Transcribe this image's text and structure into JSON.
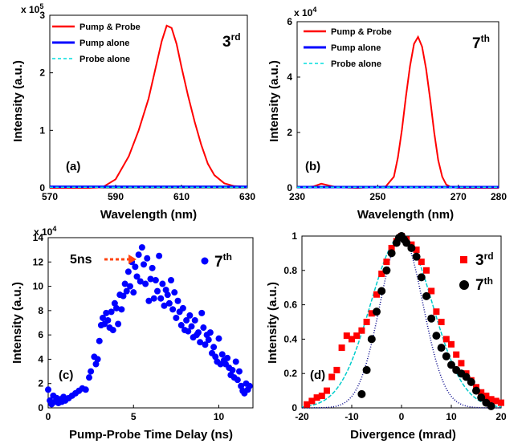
{
  "chart_data": [
    {
      "id": "a",
      "type": "line",
      "panel_label": "(a)",
      "order_label": "3",
      "order_sup": "rd",
      "multiplier": "x 10",
      "multiplier_exp": "5",
      "xlabel": "Wavelength (nm)",
      "ylabel": "Intensity (a.u.)",
      "xlim": [
        570,
        630
      ],
      "ylim": [
        0,
        3
      ],
      "xticks": [
        570,
        590,
        610,
        630
      ],
      "yticks": [
        0,
        1,
        2,
        3
      ],
      "legend": "top-left",
      "series": [
        {
          "name": "Pump & Probe",
          "color": "#ff0000",
          "style": "solid",
          "x": [
            570,
            582,
            586,
            590,
            594,
            597,
            600,
            602,
            604,
            605.5,
            607,
            608.5,
            610,
            612,
            614,
            616,
            618,
            620,
            623,
            626,
            630
          ],
          "y": [
            0,
            0,
            0.01,
            0.15,
            0.55,
            1.0,
            1.55,
            2.05,
            2.55,
            2.82,
            2.78,
            2.5,
            2.1,
            1.6,
            1.15,
            0.75,
            0.42,
            0.22,
            0.08,
            0.03,
            0.02
          ]
        },
        {
          "name": "Pump alone",
          "color": "#0000ff",
          "style": "solid",
          "x": [
            570,
            630
          ],
          "y": [
            0.02,
            0.02
          ]
        },
        {
          "name": "Probe alone",
          "color": "#00dddd",
          "style": "dashed",
          "x": [
            570,
            630
          ],
          "y": [
            0.01,
            0.01
          ]
        }
      ]
    },
    {
      "id": "b",
      "type": "line",
      "panel_label": "(b)",
      "order_label": "7",
      "order_sup": "th",
      "multiplier": "x 10",
      "multiplier_exp": "4",
      "xlabel": "Wavelength (nm)",
      "ylabel": "Intensity (a.u.)",
      "xlim": [
        230,
        280
      ],
      "ylim": [
        0,
        6
      ],
      "xticks": [
        230,
        250,
        270,
        280
      ],
      "yticks": [
        0,
        2,
        4,
        6
      ],
      "legend": "top-left",
      "series": [
        {
          "name": "Pump & Probe",
          "color": "#ff0000",
          "style": "solid",
          "x": [
            230,
            234,
            236,
            238,
            240,
            245,
            252,
            254,
            255,
            256,
            257,
            258,
            259,
            260,
            261,
            262,
            263,
            264,
            265,
            266,
            267,
            268,
            270,
            280
          ],
          "y": [
            0.02,
            0.05,
            0.15,
            0.08,
            0.02,
            0,
            0.05,
            0.4,
            1.1,
            2.1,
            3.3,
            4.4,
            5.2,
            5.45,
            5.1,
            4.3,
            3.2,
            2.0,
            1.0,
            0.4,
            0.12,
            0.04,
            0,
            0
          ]
        },
        {
          "name": "Pump alone",
          "color": "#0000ff",
          "style": "solid",
          "x": [
            230,
            280
          ],
          "y": [
            0.03,
            0.03
          ]
        },
        {
          "name": "Probe alone",
          "color": "#00dddd",
          "style": "dashed",
          "x": [
            230,
            280
          ],
          "y": [
            0.02,
            0.02
          ]
        }
      ]
    },
    {
      "id": "c",
      "type": "scatter",
      "panel_label": "(c)",
      "order_label": "7",
      "order_sup": "th",
      "annotation": "5ns",
      "annotation_color": "#ff4411",
      "multiplier": "x 10",
      "multiplier_exp": "4",
      "xlabel": "Pump-Probe Time Delay (ns)",
      "ylabel": "Intensity (a.u.)",
      "xlim": [
        0,
        12
      ],
      "ylim": [
        0,
        14
      ],
      "xticks": [
        0,
        5,
        10
      ],
      "yticks": [
        0,
        2,
        4,
        6,
        8,
        10,
        12,
        14
      ],
      "legend": "top-right",
      "series": [
        {
          "name": "7th",
          "color": "#0000ff",
          "marker": "circle",
          "x": [
            0.0,
            0.1,
            0.2,
            0.3,
            0.4,
            0.5,
            0.6,
            0.7,
            0.8,
            0.9,
            1.0,
            1.2,
            1.4,
            1.6,
            1.8,
            2.0,
            2.2,
            2.4,
            2.5,
            2.7,
            2.8,
            2.9,
            3.0,
            3.1,
            3.2,
            3.3,
            3.4,
            3.5,
            3.6,
            3.7,
            3.8,
            3.9,
            4.0,
            4.1,
            4.2,
            4.3,
            4.4,
            4.5,
            4.6,
            4.7,
            4.8,
            4.9,
            5.0,
            5.1,
            5.2,
            5.3,
            5.4,
            5.5,
            5.6,
            5.7,
            5.8,
            5.9,
            6.0,
            6.1,
            6.2,
            6.3,
            6.4,
            6.5,
            6.6,
            6.7,
            6.8,
            6.9,
            7.0,
            7.1,
            7.2,
            7.3,
            7.4,
            7.5,
            7.6,
            7.7,
            7.8,
            7.9,
            8.0,
            8.1,
            8.2,
            8.3,
            8.4,
            8.5,
            8.6,
            8.7,
            8.8,
            8.9,
            9.0,
            9.1,
            9.2,
            9.3,
            9.4,
            9.5,
            9.6,
            9.7,
            9.8,
            9.9,
            10.0,
            10.1,
            10.2,
            10.3,
            10.4,
            10.5,
            10.6,
            10.7,
            10.8,
            10.9,
            11.0,
            11.1,
            11.2,
            11.3,
            11.4,
            11.5,
            11.6,
            11.7,
            11.8
          ],
          "y": [
            1.5,
            0.6,
            0.3,
            1.0,
            0.5,
            0.8,
            0.4,
            0.7,
            0.5,
            0.9,
            0.6,
            0.8,
            1.0,
            1.2,
            1.4,
            1.6,
            1.5,
            2.5,
            3.0,
            4.2,
            3.6,
            4.0,
            5.5,
            6.8,
            7.4,
            6.9,
            7.8,
            7.2,
            6.6,
            7.9,
            6.4,
            8.6,
            8.2,
            6.9,
            9.3,
            8.1,
            9.2,
            10.2,
            9.6,
            11.2,
            10.0,
            12.0,
            9.5,
            11.6,
            10.8,
            12.6,
            10.4,
            13.2,
            11.8,
            10.2,
            12.3,
            8.8,
            10.6,
            11.5,
            9.0,
            10.5,
            9.6,
            12.5,
            9.0,
            10.2,
            8.4,
            9.7,
            9.3,
            8.6,
            10.5,
            8.1,
            9.5,
            7.4,
            8.8,
            7.9,
            6.8,
            8.2,
            6.4,
            7.2,
            6.3,
            7.6,
            6.7,
            5.8,
            7.2,
            6.0,
            6.2,
            5.4,
            7.8,
            6.6,
            5.2,
            6.0,
            5.6,
            6.2,
            4.5,
            5.0,
            4.2,
            3.8,
            5.7,
            3.6,
            4.4,
            3.9,
            3.6,
            4.1,
            3.3,
            2.7,
            3.1,
            2.5,
            3.8,
            2.3,
            3.0,
            1.8,
            1.4,
            1.2,
            2.0,
            1.5,
            1.8
          ]
        }
      ]
    },
    {
      "id": "d",
      "type": "scatter",
      "panel_label": "(d)",
      "xlabel": "Divergence (mrad)",
      "ylabel": "Intensity (a.u.)",
      "xlim": [
        -20,
        20
      ],
      "ylim": [
        0,
        1
      ],
      "xticks": [
        -20,
        -10,
        0,
        10,
        20
      ],
      "yticks": [
        0,
        0.2,
        0.4,
        0.6,
        0.8,
        1
      ],
      "legend": "right",
      "series": [
        {
          "name": "3rd",
          "legend_base": "3",
          "legend_sup": "rd",
          "color": "#ff0000",
          "marker": "square",
          "x": [
            -19,
            -18,
            -17,
            -16,
            -15,
            -14,
            -13,
            -12,
            -11,
            -10,
            -9,
            -8,
            -7,
            -6,
            -5,
            -4,
            -3,
            -2,
            -1,
            0,
            1,
            2,
            3,
            4,
            5,
            6,
            7,
            8,
            9,
            10,
            11,
            12,
            13,
            14,
            15,
            16,
            17,
            18,
            19,
            20
          ],
          "y": [
            0.02,
            0.04,
            0.06,
            0.07,
            0.1,
            0.18,
            0.22,
            0.35,
            0.42,
            0.4,
            0.42,
            0.45,
            0.5,
            0.55,
            0.66,
            0.78,
            0.85,
            0.93,
            0.97,
            1.0,
            0.98,
            0.95,
            0.92,
            0.85,
            0.8,
            0.68,
            0.56,
            0.5,
            0.4,
            0.37,
            0.31,
            0.26,
            0.2,
            0.16,
            0.12,
            0.09,
            0.07,
            0.05,
            0.04,
            0.03
          ]
        },
        {
          "name": "7th",
          "legend_base": "7",
          "legend_sup": "th",
          "color": "#000000",
          "marker": "circle",
          "x": [
            -8,
            -7,
            -6,
            -5,
            -4,
            -3,
            -2,
            -1,
            -0.5,
            0,
            0.5,
            1,
            2,
            3,
            4,
            5,
            6,
            7,
            8,
            9,
            10,
            11,
            12,
            13,
            14,
            15,
            16,
            17,
            18
          ],
          "y": [
            0.08,
            0.22,
            0.4,
            0.56,
            0.68,
            0.8,
            0.9,
            0.96,
            0.99,
            1.0,
            0.98,
            0.96,
            0.93,
            0.88,
            0.76,
            0.65,
            0.52,
            0.42,
            0.35,
            0.3,
            0.25,
            0.22,
            0.2,
            0.18,
            0.15,
            0.1,
            0.06,
            0.03,
            0.01
          ]
        }
      ]
    }
  ]
}
